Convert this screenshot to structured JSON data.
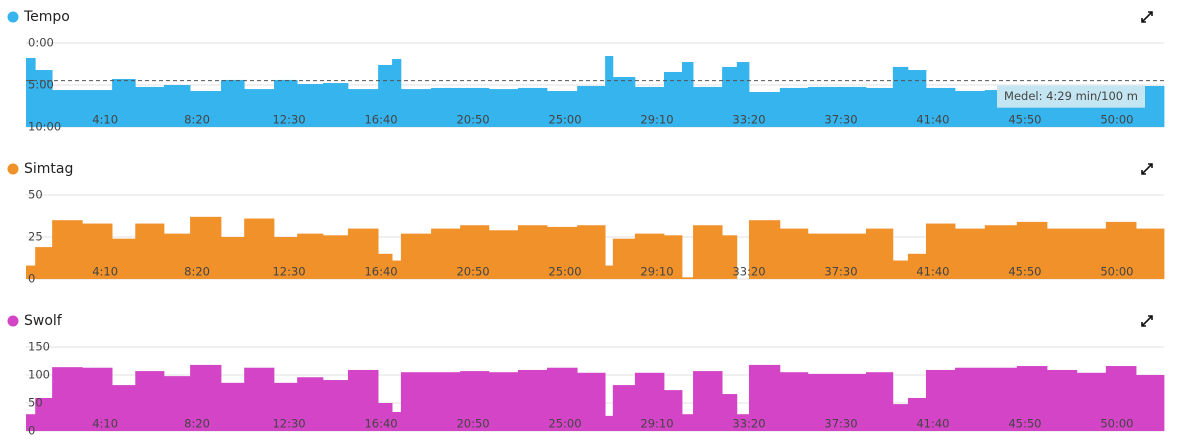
{
  "chart_data": [
    {
      "type": "step-area",
      "title": "Tempo",
      "color": "#36b4ee",
      "y_reversed": true,
      "x": [
        35,
        60,
        106,
        188,
        269,
        332,
        410,
        481,
        565,
        628,
        709,
        772,
        842,
        910,
        992,
        1030,
        1054,
        1136,
        1215,
        1293,
        1372,
        1451,
        1533,
        1609,
        1630,
        1690,
        1769,
        1818,
        1848,
        1927,
        1967,
        2000,
        2084,
        2160,
        2239,
        2318,
        2391,
        2432,
        2481,
        2560,
        2641,
        2728,
        2810,
        2891,
        2970,
        3052
      ],
      "values": [
        107,
        193,
        336,
        336,
        257,
        314,
        300,
        343,
        264,
        329,
        264,
        293,
        286,
        329,
        157,
        114,
        329,
        321,
        321,
        329,
        321,
        343,
        307,
        93,
        243,
        314,
        207,
        136,
        314,
        171,
        136,
        350,
        321,
        314,
        314,
        321,
        171,
        193,
        321,
        343,
        336,
        329,
        343,
        336,
        329,
        307
      ],
      "xlim": [
        35,
        3128
      ],
      "xticks": [
        {
          "value": 250,
          "label": "4:10"
        },
        {
          "value": 500,
          "label": "8:20"
        },
        {
          "value": 750,
          "label": "12:30"
        },
        {
          "value": 1000,
          "label": "16:40"
        },
        {
          "value": 1250,
          "label": "20:50"
        },
        {
          "value": 1500,
          "label": "25:00"
        },
        {
          "value": 1750,
          "label": "29:10"
        },
        {
          "value": 2000,
          "label": "33:20"
        },
        {
          "value": 2250,
          "label": "37:30"
        },
        {
          "value": 2500,
          "label": "41:40"
        },
        {
          "value": 2750,
          "label": "45:50"
        },
        {
          "value": 3000,
          "label": "50:00"
        }
      ],
      "ylim": [
        0,
        600
      ],
      "yticks": [
        {
          "value": 0,
          "label": "0:00"
        },
        {
          "value": 300,
          "label": "5:00"
        },
        {
          "value": 600,
          "label": "10:00"
        }
      ],
      "annotation": {
        "text": "Medel: 4:29 min/100 m",
        "value": 269
      }
    },
    {
      "type": "step-area",
      "title": "Simtag",
      "color": "#f0912a",
      "x": [
        35,
        60,
        106,
        188,
        269,
        332,
        410,
        481,
        565,
        628,
        709,
        772,
        842,
        910,
        992,
        1030,
        1054,
        1136,
        1215,
        1293,
        1372,
        1451,
        1533,
        1609,
        1630,
        1690,
        1769,
        1818,
        1848,
        1927,
        1967,
        2000,
        2084,
        2160,
        2239,
        2318,
        2391,
        2432,
        2481,
        2560,
        2641,
        2728,
        2810,
        2891,
        2970,
        3052
      ],
      "values": [
        8,
        19,
        35,
        33,
        24,
        33,
        27,
        37,
        25,
        36,
        25,
        27,
        26,
        30,
        15,
        11,
        27,
        30,
        32,
        29,
        32,
        31,
        32,
        8,
        24,
        27,
        26,
        1,
        32,
        26,
        0,
        35,
        30,
        27,
        27,
        30,
        11,
        15,
        33,
        30,
        32,
        34,
        30,
        30,
        34,
        30
      ],
      "xlim": [
        35,
        3128
      ],
      "xticks": [
        {
          "value": 250,
          "label": "4:10"
        },
        {
          "value": 500,
          "label": "8:20"
        },
        {
          "value": 750,
          "label": "12:30"
        },
        {
          "value": 1000,
          "label": "16:40"
        },
        {
          "value": 1250,
          "label": "20:50"
        },
        {
          "value": 1500,
          "label": "25:00"
        },
        {
          "value": 1750,
          "label": "29:10"
        },
        {
          "value": 2000,
          "label": "33:20"
        },
        {
          "value": 2250,
          "label": "37:30"
        },
        {
          "value": 2500,
          "label": "41:40"
        },
        {
          "value": 2750,
          "label": "45:50"
        },
        {
          "value": 3000,
          "label": "50:00"
        }
      ],
      "ylim": [
        0,
        50
      ],
      "yticks": [
        0,
        25,
        50
      ]
    },
    {
      "type": "step-area",
      "title": "Swolf",
      "color": "#d345c6",
      "x": [
        35,
        60,
        106,
        188,
        269,
        332,
        410,
        481,
        565,
        628,
        709,
        772,
        842,
        910,
        992,
        1030,
        1054,
        1136,
        1215,
        1293,
        1372,
        1451,
        1533,
        1609,
        1630,
        1690,
        1769,
        1818,
        1848,
        1927,
        1967,
        2000,
        2084,
        2160,
        2239,
        2318,
        2391,
        2432,
        2481,
        2560,
        2641,
        2728,
        2810,
        2891,
        2970,
        3052
      ],
      "values": [
        30,
        59,
        114,
        113,
        82,
        107,
        98,
        118,
        86,
        113,
        86,
        96,
        91,
        109,
        50,
        34,
        105,
        105,
        107,
        105,
        109,
        113,
        104,
        27,
        82,
        104,
        73,
        30,
        107,
        66,
        30,
        118,
        105,
        102,
        102,
        105,
        48,
        59,
        109,
        113,
        113,
        116,
        109,
        104,
        116,
        100
      ],
      "xlim": [
        35,
        3128
      ],
      "xticks": [
        {
          "value": 250,
          "label": "4:10"
        },
        {
          "value": 500,
          "label": "8:20"
        },
        {
          "value": 750,
          "label": "12:30"
        },
        {
          "value": 1000,
          "label": "16:40"
        },
        {
          "value": 1250,
          "label": "20:50"
        },
        {
          "value": 1500,
          "label": "25:00"
        },
        {
          "value": 1750,
          "label": "29:10"
        },
        {
          "value": 2000,
          "label": "33:20"
        },
        {
          "value": 2250,
          "label": "37:30"
        },
        {
          "value": 2500,
          "label": "41:40"
        },
        {
          "value": 2750,
          "label": "45:50"
        },
        {
          "value": 3000,
          "label": "50:00"
        }
      ],
      "ylim": [
        0,
        150
      ],
      "yticks": [
        0,
        50,
        100,
        150
      ]
    }
  ]
}
